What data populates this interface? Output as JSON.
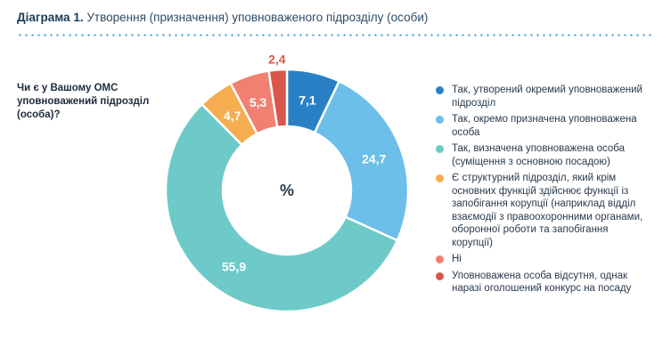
{
  "header": {
    "label": "Діаграма 1.",
    "text": "Утворення (призначення) уповноваженого підрозділу (особи)"
  },
  "question": "Чи є у Вашому ОМС уповноважений підрозділ (особа)?",
  "chart_data": {
    "type": "pie",
    "donut": true,
    "center_label": "%",
    "categories": [
      "Так, утворений окремий уповноважений підрозділ",
      "Так, окремо призначена уповноважена особа",
      "Так, визначена уповноважена особа (суміщення з основною посадою)",
      "Є структурний підрозділ, який крім основних функцій здійснює функції із запобігання корупції (наприклад відділ взаємодії з правоохоронними органами, оборонної роботи та запобігання корупції)",
      "Ні",
      "Уповноважена особа відсутня, однак наразі оголошений конкурс на посаду"
    ],
    "values": [
      7.1,
      24.7,
      55.9,
      4.7,
      5.3,
      2.4
    ],
    "labels": [
      "7,1",
      "24,7",
      "55,9",
      "4,7",
      "5,3",
      "2,4"
    ],
    "colors": [
      "#2a80c4",
      "#6bbfe9",
      "#6dcac8",
      "#f5ad4f",
      "#f08070",
      "#d9564a"
    ],
    "legend_position": "right"
  }
}
